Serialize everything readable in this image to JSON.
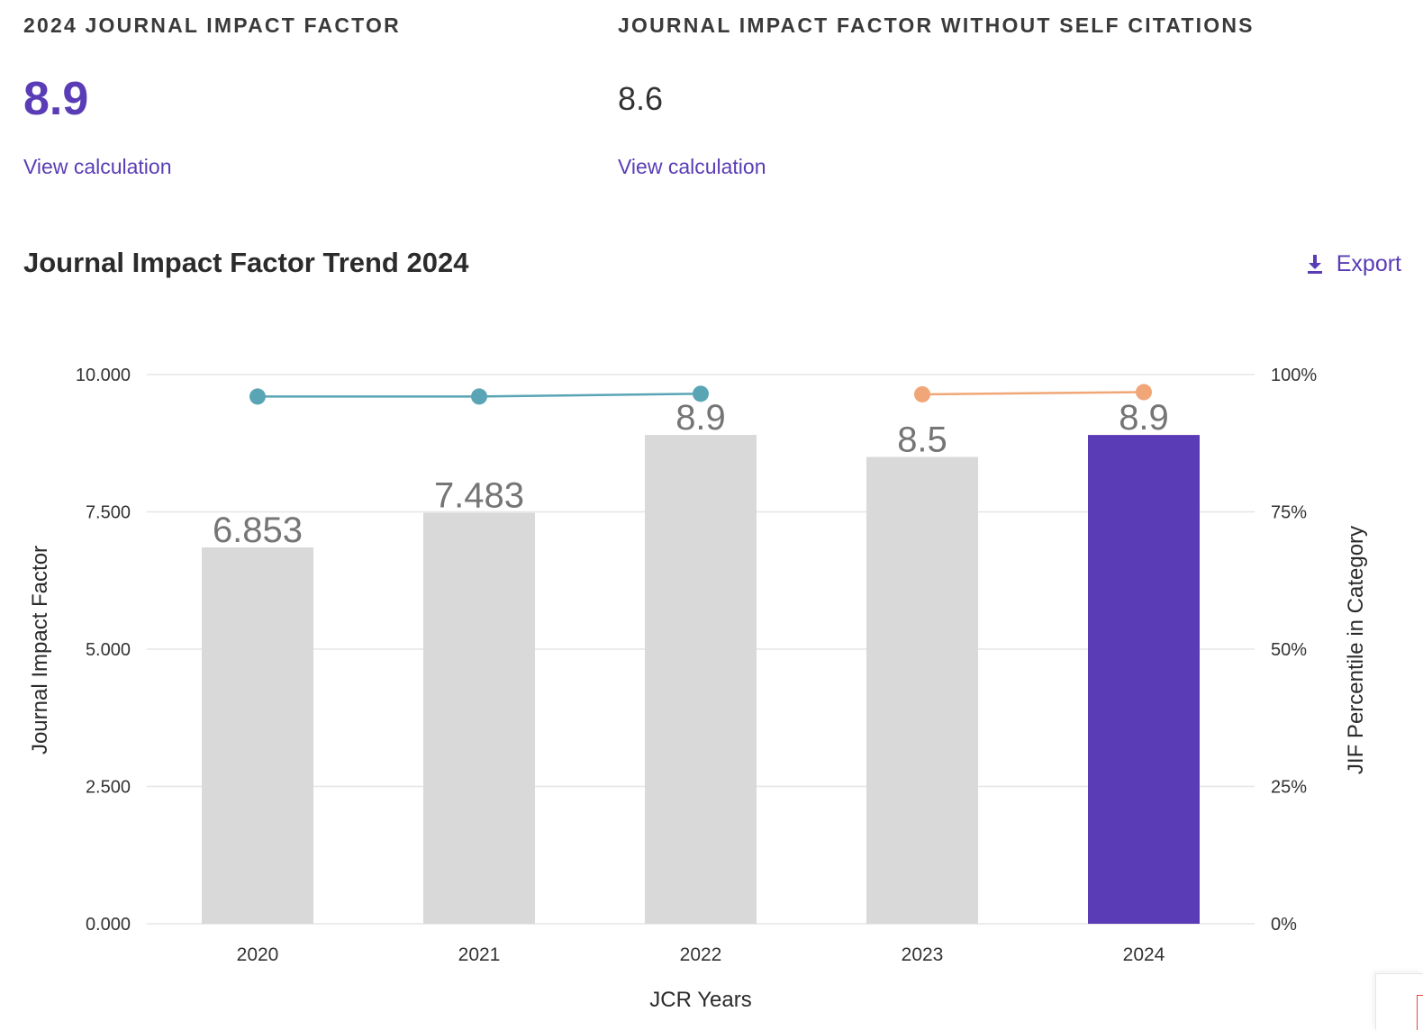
{
  "metrics": {
    "jif": {
      "label": "2024 JOURNAL IMPACT FACTOR",
      "value": "8.9",
      "link": "View calculation"
    },
    "jif_no_self": {
      "label": "JOURNAL IMPACT FACTOR WITHOUT SELF CITATIONS",
      "value": "8.6",
      "link": "View calculation"
    }
  },
  "trend": {
    "title": "Journal Impact Factor Trend 2024",
    "export_label": "Export",
    "export_icon": "download-icon"
  },
  "colors": {
    "accent": "#5a3db6",
    "bar_default": "#d9d9d9",
    "bar_highlight": "#5a3db6",
    "percentile_line_a": "#5aa5b5",
    "percentile_line_b": "#f0a676",
    "bar_label": "#757575",
    "grid": "#e6e6e6"
  },
  "chart_data": {
    "type": "bar",
    "title": "Journal Impact Factor Trend 2024",
    "xlabel": "JCR Years",
    "ylabel": "Journal Impact Factor",
    "y2label": "JIF Percentile in Category",
    "categories": [
      "2020",
      "2021",
      "2022",
      "2023",
      "2024"
    ],
    "ylim": [
      0,
      10
    ],
    "y2lim": [
      0,
      100
    ],
    "yticks": [
      {
        "value": 0,
        "label": "0.000"
      },
      {
        "value": 2.5,
        "label": "2.500"
      },
      {
        "value": 5,
        "label": "5.000"
      },
      {
        "value": 7.5,
        "label": "7.500"
      },
      {
        "value": 10,
        "label": "10.000"
      }
    ],
    "y2ticks": [
      {
        "value": 0,
        "label": "0%"
      },
      {
        "value": 25,
        "label": "25%"
      },
      {
        "value": 50,
        "label": "50%"
      },
      {
        "value": 75,
        "label": "75%"
      },
      {
        "value": 100,
        "label": "100%"
      }
    ],
    "series": [
      {
        "kind": "bar",
        "axis": "left",
        "values": [
          6.853,
          7.483,
          8.9,
          8.5,
          8.9
        ],
        "labels": [
          "6.853",
          "7.483",
          "8.9",
          "8.5",
          "8.9"
        ],
        "highlight_index": 4
      },
      {
        "kind": "line",
        "axis": "right",
        "x": [
          "2020",
          "2021",
          "2022"
        ],
        "values": [
          96.0,
          96.0,
          96.5
        ],
        "color": "#5aa5b5"
      },
      {
        "kind": "line",
        "axis": "right",
        "x": [
          "2023",
          "2024"
        ],
        "values": [
          96.4,
          96.8
        ],
        "color": "#f0a676"
      }
    ],
    "grid": true,
    "legend": "none"
  }
}
